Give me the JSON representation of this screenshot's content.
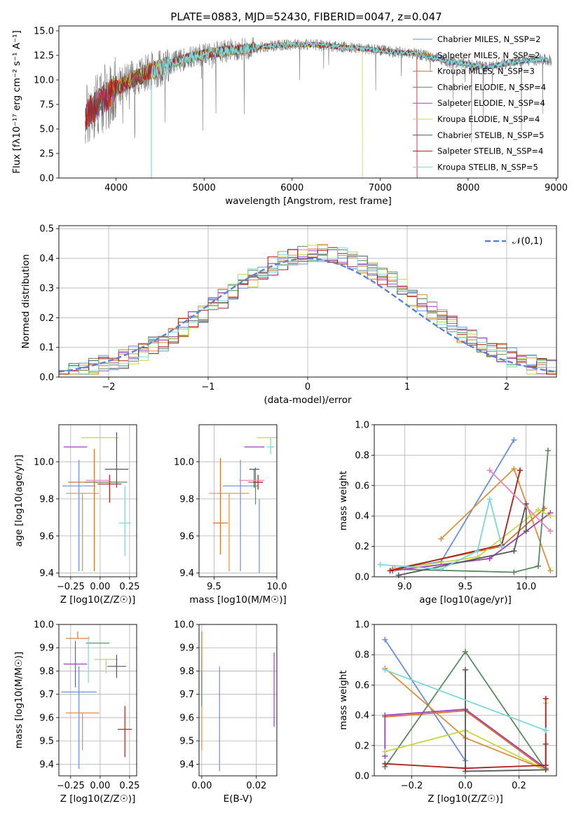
{
  "figure_title": "PLATE=0883, MJD=52430, FIBERID=0047, z=0.047",
  "colors": [
    "#6a8fdc",
    "#e0903a",
    "#d8742a",
    "#5a8a5e",
    "#a040b8",
    "#c8d640",
    "#555555",
    "#b01c1c",
    "#7ad8d8",
    "#e888b8"
  ],
  "legend": [
    "Chabrier MILES, N_SSP=2",
    "Salpeter MILES, N_SSP=2",
    "Kroupa MILES, N_SSP=3",
    "Chabrier ELODIE, N_SSP=4",
    "Salpeter ELODIE, N_SSP=4",
    "Kroupa ELODIE, N_SSP=4",
    "Chabrier STELIB, N_SSP=5",
    "Salpeter STELIB, N_SSP=4",
    "Kroupa STELIB, N_SSP=5"
  ],
  "chart_data": [
    {
      "id": "spectrum",
      "type": "line",
      "title": "PLATE=0883, MJD=52430, FIBERID=0047, z=0.047",
      "xlabel": "wavelength [Angstrom, rest frame]",
      "ylabel": "Flux [fλ10⁻¹⁷ erg cm⁻² s⁻¹ A⁻¹]",
      "xlim": [
        3350,
        9020
      ],
      "ylim": [
        0,
        15.5
      ],
      "xticks": [
        "4000",
        "5000",
        "6000",
        "7000",
        "8000",
        "9000"
      ],
      "yticks": [
        "0.0",
        "2.5",
        "5.0",
        "7.5",
        "10.0",
        "12.5",
        "15.0"
      ],
      "continuum": {
        "x": [
          3650,
          3700,
          3800,
          3900,
          4000,
          4100,
          4200,
          4400,
          4600,
          4800,
          5000,
          5200,
          5400,
          5600,
          5800,
          6000,
          6200,
          6400,
          6600,
          6800,
          7000,
          7200,
          7400,
          7600,
          7800,
          8000,
          8200,
          8400,
          8600,
          8800,
          8900
        ],
        "y": [
          6.0,
          6.8,
          7.6,
          8.3,
          9.1,
          9.6,
          10.1,
          10.9,
          11.6,
          12.2,
          12.6,
          12.9,
          13.1,
          13.3,
          13.5,
          13.6,
          13.6,
          13.5,
          13.3,
          13.2,
          13.0,
          12.8,
          12.7,
          12.3,
          11.8,
          11.6,
          11.3,
          11.6,
          11.9,
          12.1,
          12.0
        ]
      },
      "grid": false,
      "legend_position": "right"
    },
    {
      "id": "residual-hist",
      "type": "histogram",
      "xlabel": "(data-model)/error",
      "ylabel": "Normed distribution",
      "xlim": [
        -2.5,
        2.5
      ],
      "ylim": [
        0,
        0.51
      ],
      "xticks": [
        "−2",
        "−1",
        "0",
        "1",
        "2"
      ],
      "yticks": [
        "0.0",
        "0.1",
        "0.2",
        "0.3",
        "0.4",
        "0.5"
      ],
      "bin_width": 0.1,
      "reference_curve": "N(0,1)",
      "legend": [
        "𝒩(0,1)"
      ],
      "grid": true,
      "legend_position": "top-right"
    },
    {
      "id": "age-vs-z",
      "type": "errorbar",
      "xlabel": "Z [log10(Z/Z☉)]",
      "ylabel": "age  [log10(age/yr)]",
      "xlim": [
        -0.35,
        0.31
      ],
      "ylim": [
        9.38,
        10.2
      ],
      "xticks": [
        "−0.25",
        "0.00",
        "0.25"
      ],
      "yticks": [
        "9.4",
        "9.6",
        "9.8",
        "10.0"
      ],
      "points": [
        {
          "x": -0.18,
          "y": 9.87,
          "xerr": 0.14,
          "yerr": [
            0.46,
            0.14
          ]
        },
        {
          "x": -0.15,
          "y": 9.83,
          "xerr": 0.14,
          "yerr": [
            0.42,
            0.0
          ]
        },
        {
          "x": -0.05,
          "y": 9.89,
          "xerr": 0.22,
          "yerr": [
            0.48,
            0.18
          ]
        },
        {
          "x": 0.05,
          "y": 9.89,
          "xerr": 0.18,
          "yerr": [
            0.0,
            0.0
          ]
        },
        {
          "x": -0.21,
          "y": 10.08,
          "xerr": 0.1,
          "yerr": [
            0.0,
            0.0
          ]
        },
        {
          "x": 0.0,
          "y": 10.13,
          "xerr": 0.16,
          "yerr": [
            0.0,
            0.0
          ]
        },
        {
          "x": 0.14,
          "y": 9.96,
          "xerr": 0.1,
          "yerr": [
            0.1,
            0.2
          ]
        },
        {
          "x": 0.08,
          "y": 9.88,
          "xerr": 0.1,
          "yerr": [
            0.1,
            0.05
          ]
        },
        {
          "x": 0.21,
          "y": 9.67,
          "xerr": 0.05,
          "yerr": [
            0.18,
            0.2
          ]
        },
        {
          "x": -0.02,
          "y": 9.9,
          "xerr": 0.1,
          "yerr": [
            0.0,
            0.0
          ]
        }
      ],
      "grid": true
    },
    {
      "id": "age-vs-mass",
      "type": "errorbar",
      "xlabel": "mass [log10(M/M☉)]",
      "ylabel": "",
      "xlim": [
        9.38,
        10.0
      ],
      "ylim": [
        9.38,
        10.2
      ],
      "xticks": [
        "9.5",
        "10.0"
      ],
      "yticks": [
        "9.4",
        "9.6",
        "9.8",
        "10.0"
      ],
      "points": [
        {
          "x": 9.71,
          "y": 9.87,
          "xerr": 0.14,
          "yerr": [
            0.46,
            0.14
          ]
        },
        {
          "x": 9.62,
          "y": 9.83,
          "xerr": 0.16,
          "yerr": [
            0.42,
            0.0
          ]
        },
        {
          "x": 9.55,
          "y": 9.67,
          "xerr": 0.06,
          "yerr": [
            0.17,
            0.35
          ]
        },
        {
          "x": 9.83,
          "y": 9.89,
          "xerr": 0.06,
          "yerr": [
            0.12,
            0.08
          ]
        },
        {
          "x": 9.82,
          "y": 10.08,
          "xerr": 0.08,
          "yerr": [
            0.0,
            0.0
          ]
        },
        {
          "x": 9.92,
          "y": 10.13,
          "xerr": 0.08,
          "yerr": [
            0.0,
            0.0
          ]
        },
        {
          "x": 9.82,
          "y": 9.96,
          "xerr": 0.04,
          "yerr": [
            0.1,
            0.0
          ]
        },
        {
          "x": 9.85,
          "y": 9.89,
          "xerr": 0.04,
          "yerr": [
            0.04,
            0.04
          ]
        },
        {
          "x": 9.95,
          "y": 10.08,
          "xerr": 0.03,
          "yerr": [
            0.04,
            0.05
          ]
        },
        {
          "x": 9.8,
          "y": 9.9,
          "xerr": 0.1,
          "yerr": [
            0.0,
            0.0
          ]
        },
        {
          "x": 9.86,
          "y": 9.8,
          "xerr": 0.0,
          "yerr": [
            0.4,
            0.0
          ]
        }
      ],
      "grid": true
    },
    {
      "id": "weight-vs-age",
      "type": "line",
      "xlabel": "age  [log10(age/yr)]",
      "ylabel": "mass weight",
      "xlim": [
        8.75,
        10.25
      ],
      "ylim": [
        0,
        1.0
      ],
      "xticks": [
        "9.0",
        "9.5",
        "10.0"
      ],
      "yticks": [
        "0.0",
        "0.2",
        "0.4",
        "0.6",
        "0.8",
        "1.0"
      ],
      "series": [
        {
          "x": [
            8.92,
            9.3,
            9.9
          ],
          "y": [
            0.05,
            0.1,
            0.9
          ]
        },
        {
          "x": [
            9.3,
            9.9,
            10.2
          ],
          "y": [
            0.25,
            0.71,
            0.04
          ]
        },
        {
          "x": [
            8.9,
            9.8,
            10.15
          ],
          "y": [
            0.05,
            0.2,
            0.45
          ]
        },
        {
          "x": [
            8.92,
            9.9,
            10.1,
            10.18
          ],
          "y": [
            0.05,
            0.03,
            0.07,
            0.83
          ]
        },
        {
          "x": [
            8.9,
            9.7,
            10.2
          ],
          "y": [
            0.04,
            0.12,
            0.42
          ]
        },
        {
          "x": [
            8.92,
            9.6,
            10.1,
            10.2
          ],
          "y": [
            0.05,
            0.13,
            0.44,
            0.4
          ]
        },
        {
          "x": [
            8.95,
            9.9,
            10.0,
            10.0
          ],
          "y": [
            0.01,
            0.17,
            0.48,
            0.3
          ]
        },
        {
          "x": [
            8.88,
            9.8,
            9.95
          ],
          "y": [
            0.04,
            0.21,
            0.7
          ]
        },
        {
          "x": [
            8.8,
            9.3,
            9.6,
            9.7,
            9.8
          ],
          "y": [
            0.08,
            0.05,
            0.17,
            0.51,
            0.2
          ]
        },
        {
          "x": [
            9.7,
            10.2
          ],
          "y": [
            0.7,
            0.3
          ]
        }
      ],
      "grid": true
    },
    {
      "id": "mass-vs-z",
      "type": "errorbar",
      "xlabel": "Z [log10(Z/Z☉)]",
      "ylabel": "mass [log10(M/M☉)]",
      "xlim": [
        -0.35,
        0.31
      ],
      "ylim": [
        9.35,
        10.0
      ],
      "xticks": [
        "−0.25",
        "0.00",
        "0.25"
      ],
      "yticks": [
        "9.4",
        "9.5",
        "9.6",
        "9.7",
        "9.8",
        "9.9",
        "10.0"
      ],
      "points": [
        {
          "x": -0.18,
          "y": 9.71,
          "xerr": 0.15,
          "yerr": [
            0.33,
            0.11
          ]
        },
        {
          "x": -0.15,
          "y": 9.62,
          "xerr": 0.14,
          "yerr": [
            0.16,
            0.0
          ]
        },
        {
          "x": -0.19,
          "y": 9.94,
          "xerr": 0.1,
          "yerr": [
            0.0,
            0.03
          ]
        },
        {
          "x": -0.02,
          "y": 9.92,
          "xerr": 0.1,
          "yerr": [
            0.0,
            0.0
          ]
        },
        {
          "x": -0.21,
          "y": 9.83,
          "xerr": 0.1,
          "yerr": [
            0.1,
            0.1
          ]
        },
        {
          "x": 0.05,
          "y": 9.85,
          "xerr": 0.1,
          "yerr": [
            0.06,
            0.0
          ]
        },
        {
          "x": 0.14,
          "y": 9.82,
          "xerr": 0.08,
          "yerr": [
            0.05,
            0.05
          ]
        },
        {
          "x": 0.21,
          "y": 9.55,
          "xerr": 0.06,
          "yerr": [
            0.12,
            0.1
          ]
        },
        {
          "x": -0.1,
          "y": 9.85,
          "xerr": 0.0,
          "yerr": [
            0.1,
            0.1
          ]
        }
      ],
      "grid": true
    },
    {
      "id": "mass-vs-ebv",
      "type": "errorbar",
      "xlabel": "E(B-V)",
      "ylabel": "",
      "xlim": [
        -0.001,
        0.0275
      ],
      "ylim": [
        9.35,
        10.0
      ],
      "xticks": [
        "0.00",
        "0.02"
      ],
      "yticks": [
        "9.4",
        "9.5",
        "9.6",
        "9.7",
        "9.8",
        "9.9",
        "10.0"
      ],
      "points": [
        {
          "x": 0.0065,
          "y": 9.71,
          "xerr": 0.0,
          "yerr": [
            0.34,
            0.11
          ]
        },
        {
          "x": 0.0,
          "y": 9.62,
          "xerr": 0.0,
          "yerr": [
            0.16,
            0.25
          ]
        },
        {
          "x": 0.0,
          "y": 9.85,
          "xerr": 0.0,
          "yerr": [
            0.1,
            0.12
          ]
        },
        {
          "x": 0.0,
          "y": 9.75,
          "xerr": 0.0,
          "yerr": [
            0.1,
            0.05
          ]
        },
        {
          "x": 0.0265,
          "y": 9.72,
          "xerr": 0.0,
          "yerr": [
            0.16,
            0.16
          ]
        }
      ],
      "grid": true
    },
    {
      "id": "weight-vs-z",
      "type": "line",
      "xlabel": "Z [log10(Z/Z☉)]",
      "ylabel": "mass weight",
      "xlim": [
        -0.34,
        0.34
      ],
      "ylim": [
        0,
        1.0
      ],
      "xticks": [
        "−0.2",
        "0.0",
        "0.2"
      ],
      "yticks": [
        "0.0",
        "0.2",
        "0.4",
        "0.6",
        "0.8",
        "1.0"
      ],
      "series": [
        {
          "x": [
            -0.3,
            0.0
          ],
          "y": [
            0.9,
            0.1
          ]
        },
        {
          "x": [
            -0.3,
            0.0,
            0.3
          ],
          "y": [
            0.71,
            0.25,
            0.04
          ]
        },
        {
          "x": [
            -0.3,
            0.0,
            0.3
          ],
          "y": [
            0.39,
            0.43,
            0.04
          ]
        },
        {
          "x": [
            -0.3,
            0.0,
            0.3
          ],
          "y": [
            0.06,
            0.82,
            0.04
          ]
        },
        {
          "x": [
            -0.3,
            -0.3,
            0.0,
            0.3
          ],
          "y": [
            0.13,
            0.4,
            0.44,
            0.05
          ]
        },
        {
          "x": [
            -0.3,
            0.0,
            0.3,
            0.3
          ],
          "y": [
            0.16,
            0.3,
            0.04,
            0.48
          ]
        },
        {
          "x": [
            0.0,
            0.0,
            0.3,
            0.3
          ],
          "y": [
            0.7,
            0.03,
            0.04,
            0.21
          ]
        },
        {
          "x": [
            -0.3,
            0.0,
            0.3,
            0.3
          ],
          "y": [
            0.08,
            0.05,
            0.07,
            0.51
          ]
        },
        {
          "x": [
            -0.3,
            0.3
          ],
          "y": [
            0.7,
            0.3
          ]
        }
      ],
      "grid": true
    }
  ]
}
